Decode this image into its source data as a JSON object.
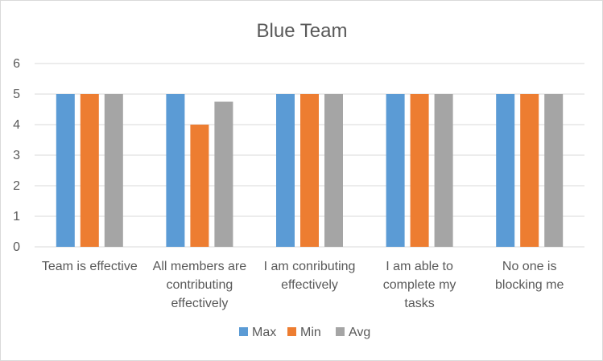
{
  "chart_data": {
    "type": "bar",
    "title": "Blue Team",
    "xlabel": "",
    "ylabel": "",
    "ylim": [
      0,
      6
    ],
    "yticks": [
      "0",
      "1",
      "2",
      "3",
      "4",
      "5",
      "6"
    ],
    "grid": true,
    "legend_position": "bottom",
    "categories": [
      [
        "Team is effective"
      ],
      [
        "All members are",
        "contributing",
        "effectively"
      ],
      [
        "I am conributing",
        "effectively"
      ],
      [
        "I am able to",
        "complete my",
        "tasks"
      ],
      [
        "No one is",
        "blocking me"
      ]
    ],
    "series": [
      {
        "name": "Max",
        "color": "#5b9bd5",
        "values": [
          5,
          5,
          5,
          5,
          5
        ]
      },
      {
        "name": "Min",
        "color": "#ed7d31",
        "values": [
          5,
          4,
          5,
          5,
          5
        ]
      },
      {
        "name": "Avg",
        "color": "#a5a5a5",
        "values": [
          5,
          4.75,
          5,
          5,
          5
        ]
      }
    ]
  }
}
